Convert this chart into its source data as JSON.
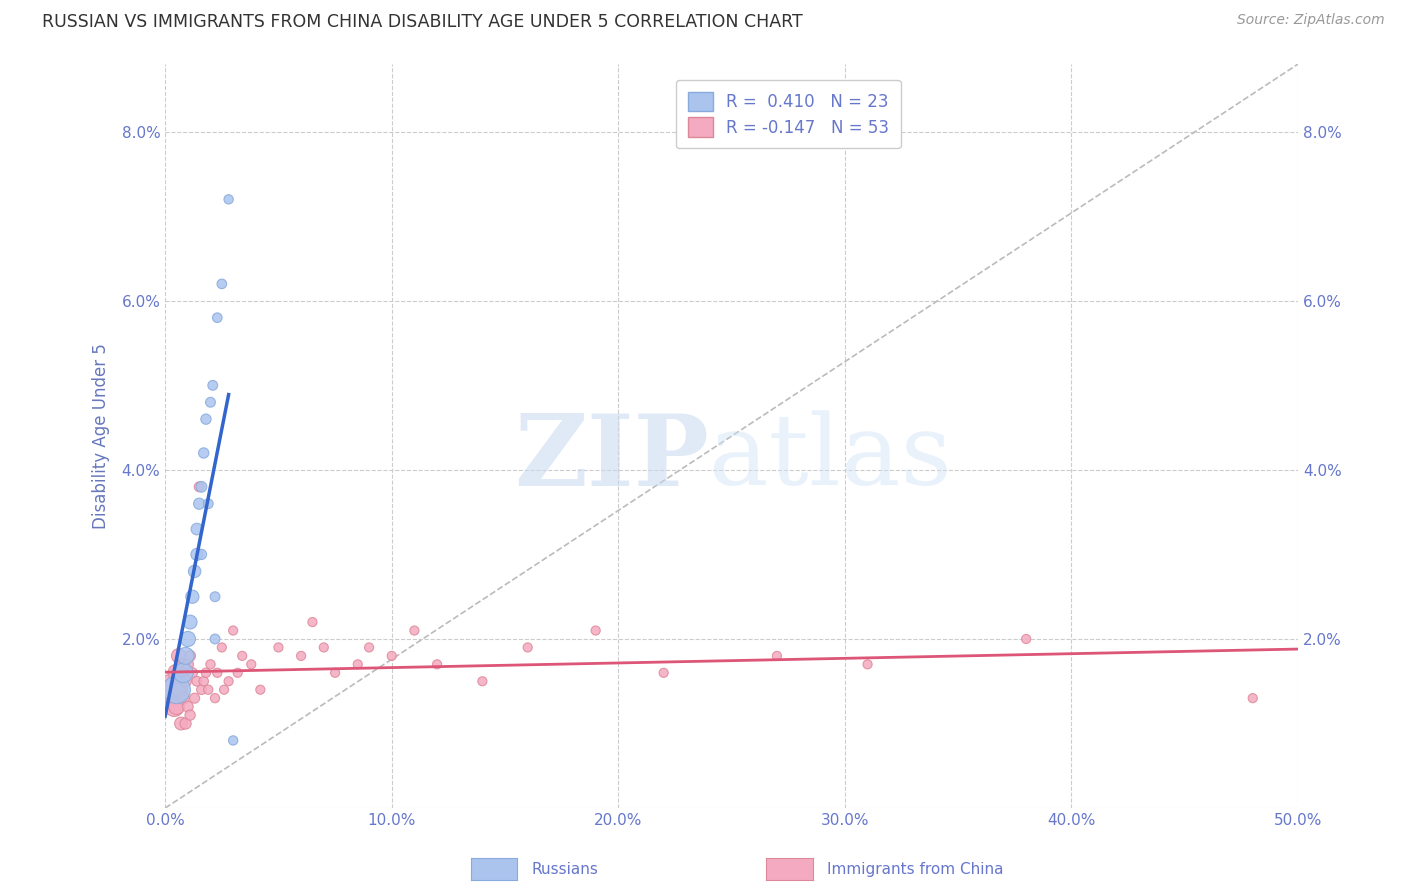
{
  "title": "RUSSIAN VS IMMIGRANTS FROM CHINA DISABILITY AGE UNDER 5 CORRELATION CHART",
  "source": "Source: ZipAtlas.com",
  "ylabel": "Disability Age Under 5",
  "xlim": [
    0,
    0.5
  ],
  "ylim": [
    0,
    0.088
  ],
  "xticks": [
    0.0,
    0.1,
    0.2,
    0.3,
    0.4,
    0.5
  ],
  "yticks": [
    0.0,
    0.02,
    0.04,
    0.06,
    0.08
  ],
  "xticklabels": [
    "0.0%",
    "10.0%",
    "20.0%",
    "30.0%",
    "40.0%",
    "50.0%"
  ],
  "yticklabels_left": [
    "",
    "2.0%",
    "4.0%",
    "6.0%",
    "8.0%"
  ],
  "yticklabels_right": [
    "",
    "2.0%",
    "4.0%",
    "6.0%",
    "8.0%"
  ],
  "background_color": "#ffffff",
  "grid_color": "#cccccc",
  "title_color": "#333333",
  "axis_label_color": "#6677bb",
  "tick_color": "#6677cc",
  "russian_color": "#aac4ee",
  "russian_edge_color": "#88aadd",
  "china_color": "#f4aac0",
  "china_edge_color": "#dd8899",
  "russian_line_color": "#3366cc",
  "china_line_color": "#dd5577",
  "ref_line_color": "#bbbbbb",
  "legend_r1": "R =  0.410   N = 23",
  "legend_r2": "R = -0.147   N = 53",
  "russians_x": [
    0.005,
    0.008,
    0.009,
    0.01,
    0.011,
    0.012,
    0.013,
    0.014,
    0.014,
    0.015,
    0.016,
    0.016,
    0.017,
    0.018,
    0.019,
    0.02,
    0.021,
    0.022,
    0.022,
    0.023,
    0.025,
    0.028,
    0.03
  ],
  "russians_y": [
    0.014,
    0.016,
    0.018,
    0.02,
    0.022,
    0.025,
    0.028,
    0.03,
    0.033,
    0.036,
    0.038,
    0.03,
    0.042,
    0.046,
    0.036,
    0.048,
    0.05,
    0.02,
    0.025,
    0.058,
    0.062,
    0.072,
    0.008
  ],
  "russians_size": [
    400,
    200,
    150,
    120,
    100,
    90,
    80,
    75,
    70,
    65,
    60,
    55,
    55,
    55,
    50,
    50,
    50,
    50,
    50,
    48,
    48,
    45,
    45
  ],
  "china_x": [
    0.003,
    0.004,
    0.005,
    0.005,
    0.006,
    0.006,
    0.007,
    0.007,
    0.008,
    0.008,
    0.009,
    0.009,
    0.01,
    0.01,
    0.011,
    0.011,
    0.012,
    0.013,
    0.014,
    0.015,
    0.016,
    0.017,
    0.018,
    0.019,
    0.02,
    0.022,
    0.023,
    0.025,
    0.026,
    0.028,
    0.03,
    0.032,
    0.034,
    0.038,
    0.042,
    0.05,
    0.06,
    0.065,
    0.07,
    0.075,
    0.085,
    0.09,
    0.1,
    0.11,
    0.12,
    0.14,
    0.16,
    0.19,
    0.22,
    0.27,
    0.31,
    0.38,
    0.48
  ],
  "china_y": [
    0.014,
    0.012,
    0.016,
    0.012,
    0.018,
    0.014,
    0.016,
    0.01,
    0.017,
    0.013,
    0.015,
    0.01,
    0.017,
    0.012,
    0.018,
    0.011,
    0.016,
    0.013,
    0.015,
    0.038,
    0.014,
    0.015,
    0.016,
    0.014,
    0.017,
    0.013,
    0.016,
    0.019,
    0.014,
    0.015,
    0.021,
    0.016,
    0.018,
    0.017,
    0.014,
    0.019,
    0.018,
    0.022,
    0.019,
    0.016,
    0.017,
    0.019,
    0.018,
    0.021,
    0.017,
    0.015,
    0.019,
    0.021,
    0.016,
    0.018,
    0.017,
    0.02,
    0.013
  ],
  "china_size": [
    500,
    200,
    150,
    130,
    110,
    100,
    90,
    85,
    80,
    75,
    70,
    65,
    65,
    60,
    60,
    55,
    55,
    52,
    50,
    50,
    48,
    47,
    46,
    45,
    45,
    44,
    44,
    43,
    43,
    43,
    43,
    43,
    43,
    43,
    43,
    43,
    43,
    43,
    43,
    43,
    43,
    43,
    43,
    43,
    43,
    43,
    43,
    43,
    43,
    43,
    43,
    43,
    43
  ]
}
